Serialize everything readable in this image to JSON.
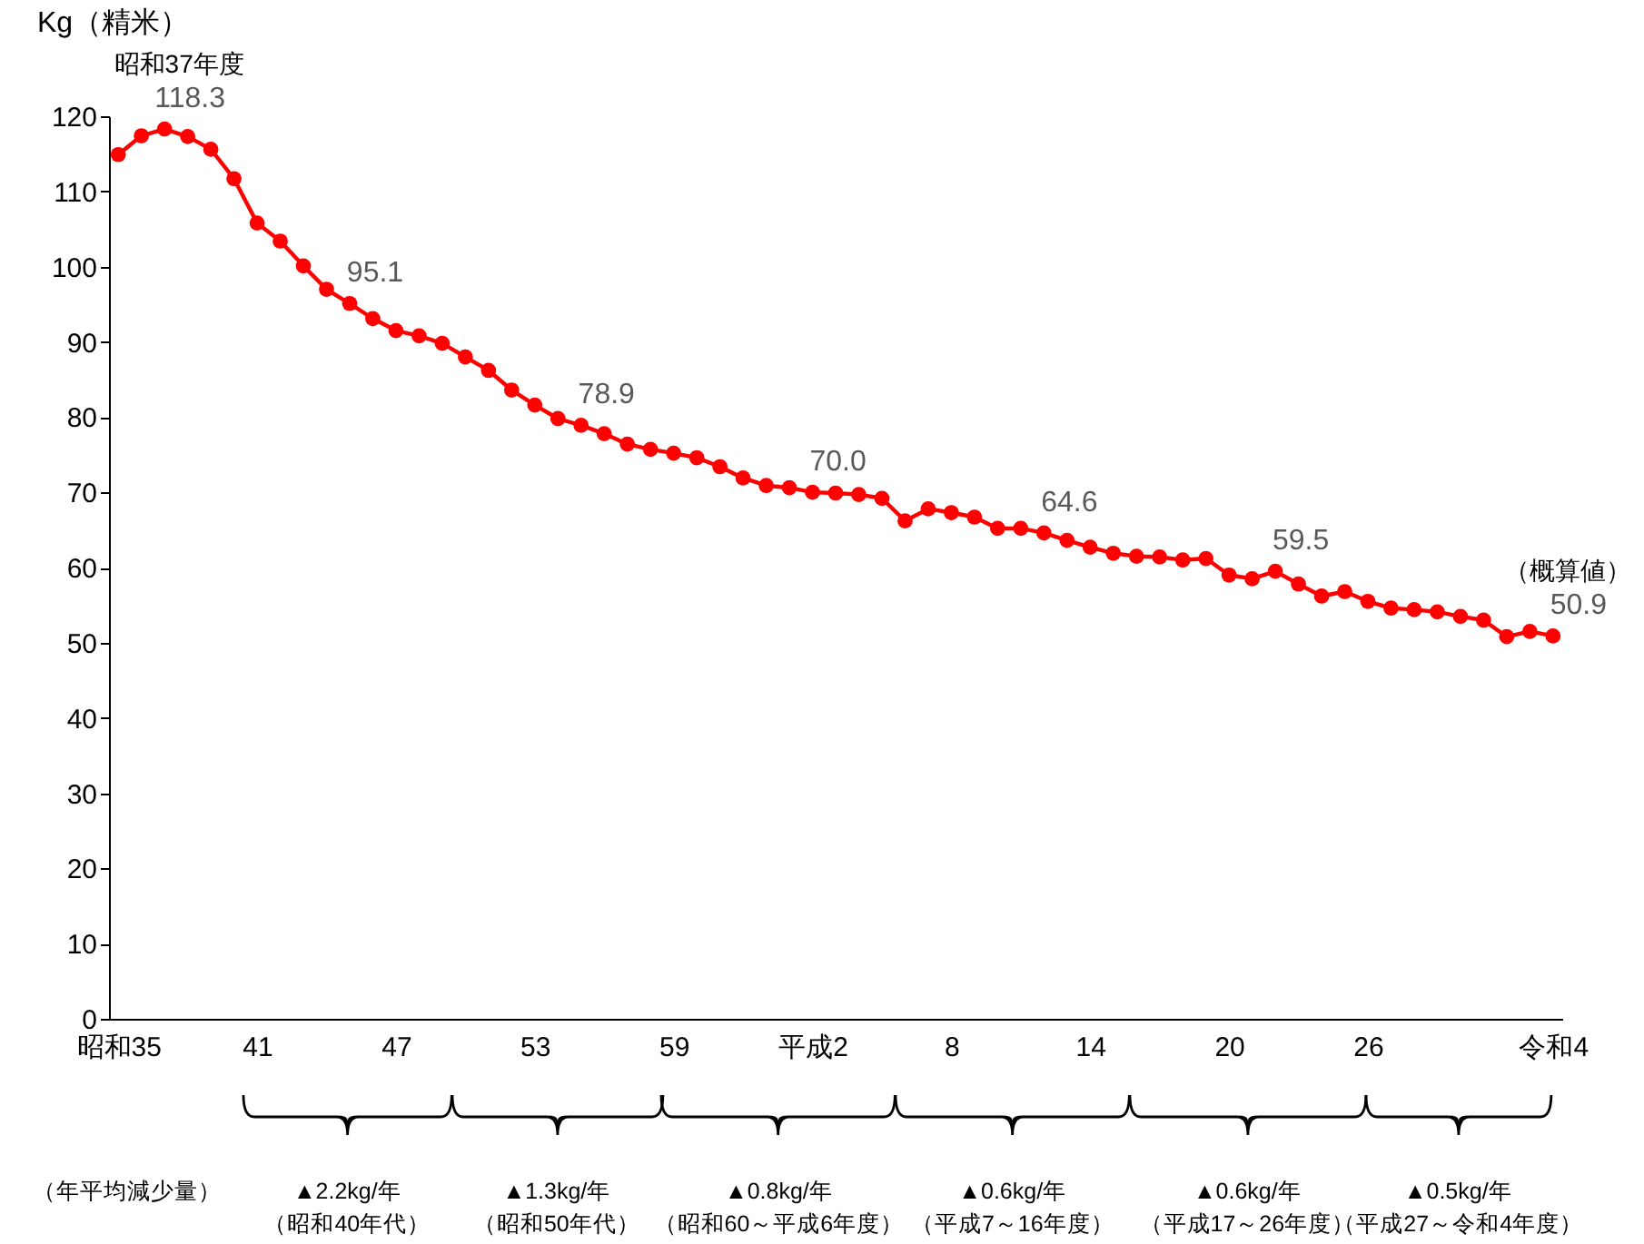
{
  "chart_data": {
    "type": "line",
    "ylabel": "Kg（精米）",
    "categories": [
      "昭和35",
      null,
      null,
      null,
      null,
      null,
      "41",
      null,
      null,
      null,
      null,
      null,
      "47",
      null,
      null,
      null,
      null,
      null,
      "53",
      null,
      null,
      null,
      null,
      null,
      "59",
      null,
      null,
      null,
      null,
      null,
      "平成2",
      null,
      null,
      null,
      null,
      null,
      "8",
      null,
      null,
      null,
      null,
      null,
      "14",
      null,
      null,
      null,
      null,
      null,
      "20",
      null,
      null,
      null,
      null,
      null,
      "26",
      null,
      null,
      null,
      null,
      null,
      null,
      null,
      "令和4"
    ],
    "values": [
      114.9,
      117.4,
      118.3,
      117.3,
      115.6,
      111.7,
      105.8,
      103.4,
      100.1,
      97.0,
      95.1,
      93.1,
      91.5,
      90.8,
      89.8,
      88.0,
      86.2,
      83.6,
      81.6,
      79.8,
      78.9,
      77.8,
      76.4,
      75.7,
      75.2,
      74.6,
      73.4,
      71.9,
      70.9,
      70.6,
      70.0,
      69.9,
      69.7,
      69.2,
      66.2,
      67.8,
      67.3,
      66.7,
      65.2,
      65.2,
      64.6,
      63.6,
      62.7,
      61.9,
      61.5,
      61.4,
      61.0,
      61.2,
      59.0,
      58.5,
      59.5,
      57.8,
      56.2,
      56.8,
      55.5,
      54.6,
      54.4,
      54.1,
      53.5,
      53.0,
      50.8,
      51.5,
      50.9
    ],
    "value_labels": [
      null,
      null,
      "118.3",
      null,
      null,
      null,
      null,
      null,
      null,
      null,
      "95.1",
      null,
      null,
      null,
      null,
      null,
      null,
      null,
      null,
      null,
      "78.9",
      null,
      null,
      null,
      null,
      null,
      null,
      null,
      null,
      null,
      "70.0",
      null,
      null,
      null,
      null,
      null,
      null,
      null,
      null,
      null,
      "64.6",
      null,
      null,
      null,
      null,
      null,
      null,
      null,
      null,
      null,
      "59.5",
      null,
      null,
      null,
      null,
      null,
      null,
      null,
      null,
      null,
      null,
      null,
      "50.9"
    ],
    "color": "#ff0000",
    "ylim": [
      0,
      120
    ],
    "yticks": [
      0,
      10,
      20,
      30,
      40,
      50,
      60,
      70,
      80,
      90,
      100,
      110,
      120
    ],
    "marker": "circle",
    "line_style": "solid",
    "annotations": [
      {
        "text": "昭和37年度",
        "y": 118.3
      },
      {
        "text": "（概算値）",
        "y": 50.9
      },
      "（年平均減少量）",
      "▲2.2kg/年（昭和40年代）",
      "▲1.3kg/年（昭和50年代）",
      "▲0.8kg/年（昭和60～平成6年度）",
      "▲0.6kg/年（平成7～16年度）",
      "▲0.6kg/年（平成17～26年度）",
      "▲0.5kg/年（平成27～令和4年度）"
    ]
  }
}
